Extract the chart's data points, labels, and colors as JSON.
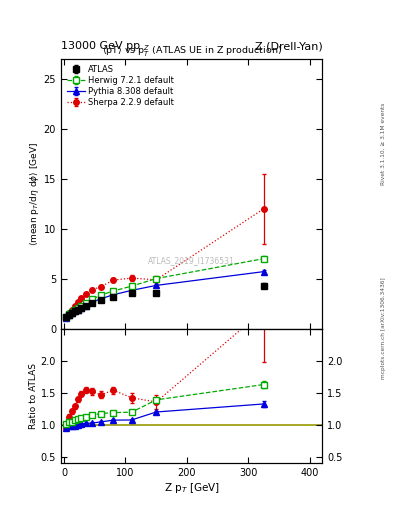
{
  "title_left": "13000 GeV pp",
  "title_right": "Z (Drell-Yan)",
  "plot_title": "<pT> vs p$_T^Z$ (ATLAS UE in Z production)",
  "ylabel_main": "<mean p$_T$/dη dφ> [GeV]",
  "ylabel_ratio": "Ratio to ATLAS",
  "xlabel": "Z p$_T$ [GeV]",
  "watermark": "ATLAS_2019_I1736531",
  "right_label": "mcplots.cern.ch [arXiv:1306.3436]",
  "right_label2": "Rivet 3.1.10, ≥ 3.1M events",
  "atlas_x": [
    2.5,
    7.5,
    12.5,
    17.5,
    22.5,
    27.5,
    35,
    45,
    60,
    80,
    110,
    150,
    325
  ],
  "atlas_y": [
    1.15,
    1.35,
    1.55,
    1.75,
    1.9,
    2.05,
    2.25,
    2.55,
    2.85,
    3.15,
    3.55,
    3.6,
    4.3
  ],
  "atlas_yerr": [
    0.04,
    0.04,
    0.04,
    0.04,
    0.04,
    0.04,
    0.05,
    0.06,
    0.08,
    0.09,
    0.11,
    0.14,
    0.28
  ],
  "herwig_x": [
    2.5,
    7.5,
    12.5,
    17.5,
    22.5,
    27.5,
    35,
    45,
    60,
    80,
    110,
    150,
    325
  ],
  "herwig_y": [
    1.17,
    1.42,
    1.63,
    1.88,
    2.08,
    2.28,
    2.52,
    2.93,
    3.35,
    3.75,
    4.25,
    5.0,
    7.0
  ],
  "herwig_yerr": [
    0.02,
    0.02,
    0.02,
    0.02,
    0.02,
    0.02,
    0.03,
    0.04,
    0.05,
    0.06,
    0.08,
    0.1,
    0.25
  ],
  "pythia_x": [
    2.5,
    7.5,
    12.5,
    17.5,
    22.5,
    27.5,
    35,
    45,
    60,
    80,
    110,
    150,
    325
  ],
  "pythia_y": [
    1.1,
    1.33,
    1.53,
    1.72,
    1.9,
    2.08,
    2.3,
    2.62,
    2.98,
    3.38,
    3.82,
    4.32,
    5.7
  ],
  "pythia_yerr": [
    0.01,
    0.01,
    0.01,
    0.01,
    0.02,
    0.02,
    0.02,
    0.03,
    0.04,
    0.05,
    0.06,
    0.08,
    0.18
  ],
  "sherpa_x": [
    2.5,
    7.5,
    12.5,
    17.5,
    22.5,
    27.5,
    35,
    45,
    60,
    80,
    110,
    150,
    325
  ],
  "sherpa_y": [
    1.1,
    1.52,
    1.88,
    2.25,
    2.65,
    3.05,
    3.48,
    3.88,
    4.18,
    4.85,
    5.05,
    4.88,
    12.0
  ],
  "sherpa_yerr": [
    0.04,
    0.05,
    0.06,
    0.07,
    0.08,
    0.09,
    0.11,
    0.13,
    0.15,
    0.18,
    0.28,
    0.38,
    3.5
  ],
  "ylim_main": [
    0,
    27
  ],
  "ylim_ratio": [
    0.4,
    2.5
  ],
  "xlim": [
    -5,
    420
  ],
  "yticks_main": [
    0,
    5,
    10,
    15,
    20,
    25
  ],
  "yticks_ratio": [
    0.5,
    1.0,
    1.5,
    2.0
  ],
  "atlas_color": "black",
  "herwig_color": "#00aa00",
  "pythia_color": "#0000dd",
  "sherpa_color": "#dd0000",
  "ratio_line_color": "#999900"
}
